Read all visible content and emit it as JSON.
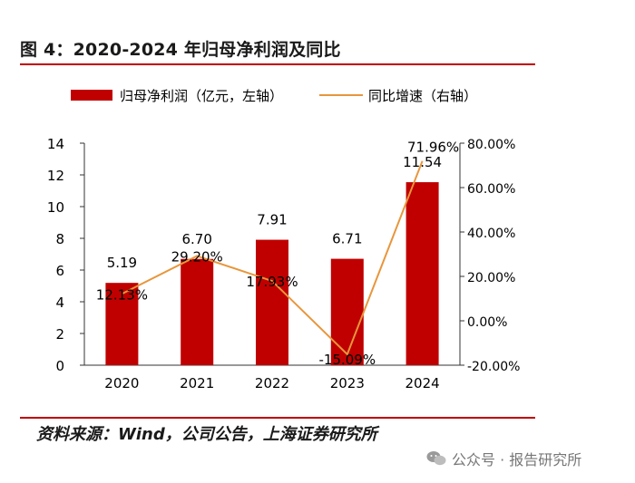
{
  "title": "图 4：2020-2024 年归母净利润及同比",
  "source": "资料来源：Wind，公司公告，上海证券研究所",
  "watermark": "公众号 · 报告研究所",
  "colors": {
    "bar": "#c00000",
    "line": "#e8963c",
    "rule": "#c00000"
  },
  "chart_data": {
    "type": "bar+line",
    "categories": [
      "2020",
      "2021",
      "2022",
      "2023",
      "2024"
    ],
    "series": [
      {
        "name": "归母净利润（亿元，左轴）",
        "type": "bar",
        "axis": "left",
        "values": [
          5.19,
          6.7,
          7.91,
          6.71,
          11.54
        ],
        "labels": [
          "5.19",
          "6.70",
          "7.91",
          "6.71",
          "11.54"
        ]
      },
      {
        "name": "同比增速（右轴）",
        "type": "line",
        "axis": "right",
        "values": [
          12.13,
          29.2,
          17.93,
          -15.09,
          71.96
        ],
        "labels": [
          "12.13%",
          "29.20%",
          "17.93%",
          "-15.09%",
          "71.96%"
        ]
      }
    ],
    "left_axis": {
      "min": 0,
      "max": 14,
      "ticks": [
        "0",
        "2",
        "4",
        "6",
        "8",
        "10",
        "12",
        "14"
      ]
    },
    "right_axis": {
      "min": -20,
      "max": 80,
      "ticks": [
        "-20.00%",
        "0.00%",
        "20.00%",
        "40.00%",
        "60.00%",
        "80.00%"
      ]
    },
    "legend_position": "top"
  }
}
